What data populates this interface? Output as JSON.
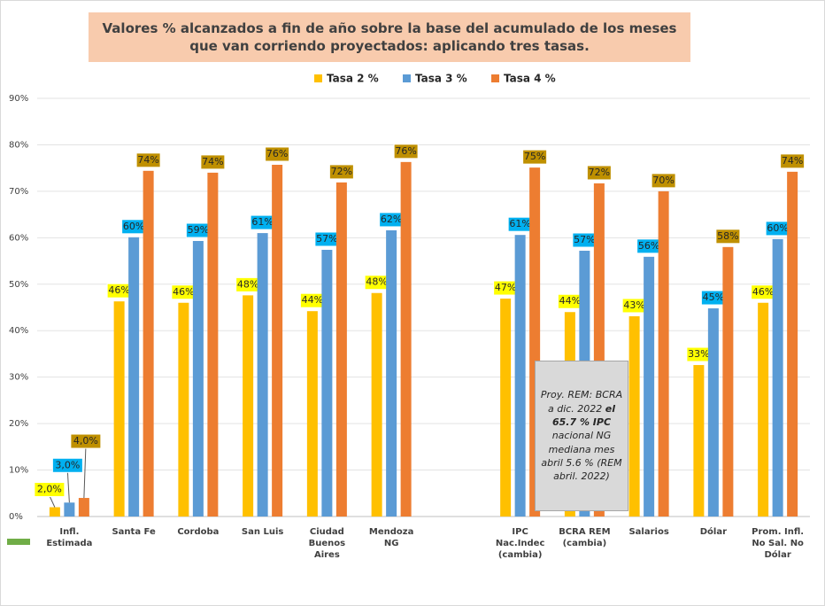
{
  "chart_data": {
    "type": "bar",
    "title": "Valores % alcanzados a fin de año sobre la base del acumulado de los meses que van corriendo proyectados: aplicando tres tasas.",
    "categories": [
      "Infl. Estimada",
      "Santa Fe",
      "Cordoba",
      "San Luis",
      "Ciudad Buenos Aires",
      "Mendoza NG",
      null,
      "IPC Nac.Indec (cambia)",
      "BCRA REM (cambia)",
      "Salarios",
      "Dólar",
      "Prom. Infl. No Sal. No Dólar"
    ],
    "series": [
      {
        "name": "Tasa 2 %",
        "color": "#ffc000",
        "label_color": "#ffff00",
        "values": [
          2.0,
          46.3,
          46.0,
          47.6,
          44.2,
          48.1,
          null,
          46.9,
          44.0,
          43.1,
          32.6,
          46.0
        ],
        "value_labels": [
          "2,0%",
          "46%",
          "46%",
          "48%",
          "44%",
          "48%",
          null,
          "47%",
          "44%",
          "43%",
          "33%",
          "46%"
        ]
      },
      {
        "name": "Tasa 3 %",
        "color": "#5b9bd5",
        "label_color": "#00b0f0",
        "values": [
          3.0,
          60.1,
          59.3,
          61.0,
          57.4,
          61.6,
          null,
          60.6,
          57.2,
          55.9,
          44.8,
          59.7
        ],
        "value_labels": [
          "3,0%",
          "60%",
          "59%",
          "61%",
          "57%",
          "62%",
          null,
          "61%",
          "57%",
          "56%",
          "45%",
          "60%"
        ]
      },
      {
        "name": "Tasa 4 %",
        "color": "#ed7d31",
        "label_color": "#bf9000",
        "values": [
          4.0,
          74.4,
          74.0,
          75.7,
          71.9,
          76.3,
          null,
          75.1,
          71.7,
          70.0,
          58.0,
          74.2
        ],
        "value_labels": [
          "4,0%",
          "74%",
          "74%",
          "76%",
          "72%",
          "76%",
          null,
          "75%",
          "72%",
          "70%",
          "58%",
          "74%"
        ]
      }
    ],
    "ylim": [
      0,
      90
    ],
    "yticks": [
      {
        "value": 0,
        "label": "0%"
      },
      {
        "value": 10,
        "label": "10%"
      },
      {
        "value": 20,
        "label": "20%"
      },
      {
        "value": 30,
        "label": "30%"
      },
      {
        "value": 40,
        "label": "40%"
      },
      {
        "value": 50,
        "label": "50%"
      },
      {
        "value": 60,
        "label": "60%"
      },
      {
        "value": 70,
        "label": "70%"
      },
      {
        "value": 80,
        "label": "80%"
      },
      {
        "value": 90,
        "label": "90%"
      }
    ],
    "grid": true,
    "legend": "top",
    "annotation": [
      "Proy. REM: BCRA a dic. 2022 ",
      "el 65.7 %  IPC",
      " nacional NG mediana mes abril 5.6 % (REM abril. 2022)"
    ]
  }
}
